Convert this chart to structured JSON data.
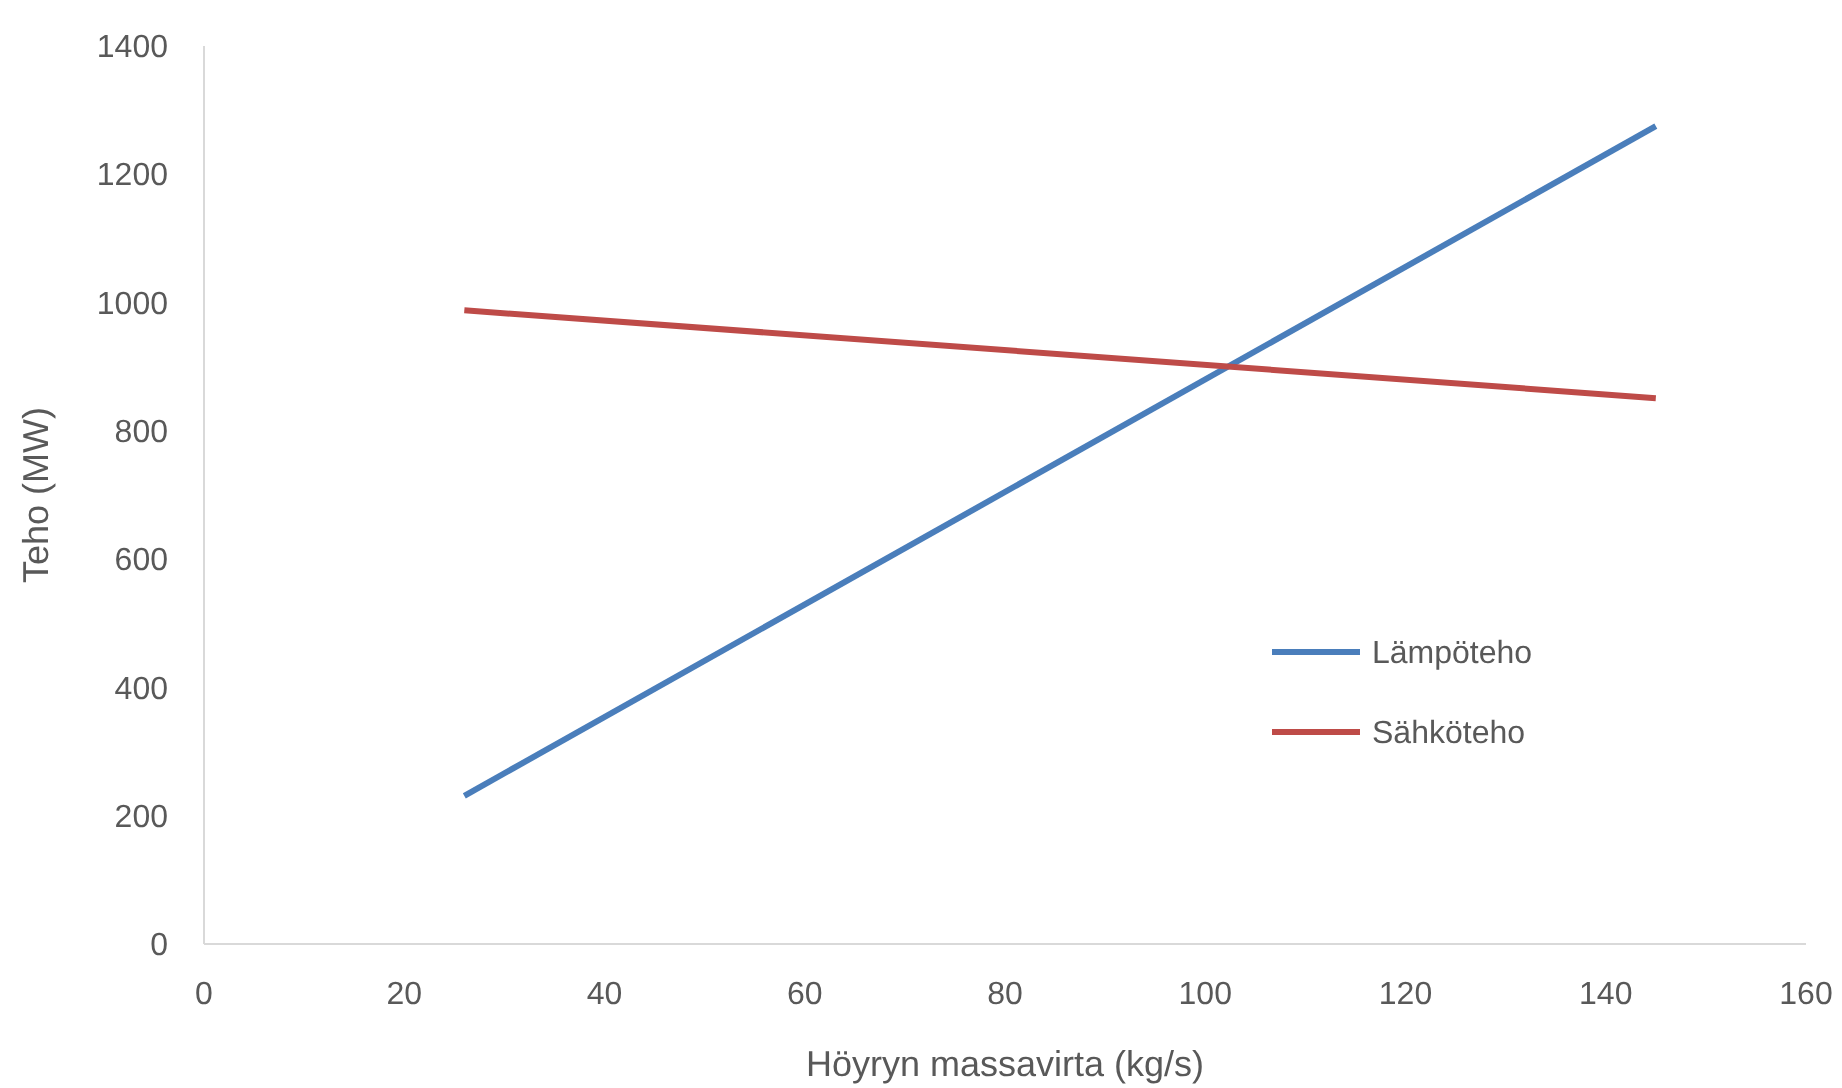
{
  "chart_data": {
    "type": "line",
    "xlabel": "Höyryn massavirta (kg/s)",
    "ylabel": "Teho (MW)",
    "xlim": [
      0,
      160
    ],
    "xticks": [
      0,
      20,
      40,
      60,
      80,
      100,
      120,
      140,
      160
    ],
    "ylim": [
      0,
      1400
    ],
    "yticks": [
      0,
      200,
      400,
      600,
      800,
      1000,
      1200,
      1400
    ],
    "x": [
      26,
      145
    ],
    "grid": false,
    "legend": "right",
    "marker": "none",
    "line_style": "solid",
    "series": [
      {
        "name": "Lämpöteho",
        "color": "#4a7ebb",
        "values": [
          231,
          1275
        ]
      },
      {
        "name": "Sähköteho",
        "color": "#be4b48",
        "values": [
          988,
          851
        ]
      }
    ]
  }
}
